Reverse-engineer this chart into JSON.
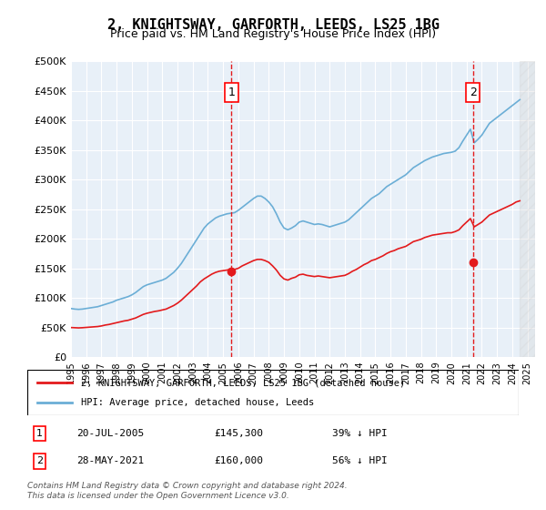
{
  "title": "2, KNIGHTSWAY, GARFORTH, LEEDS, LS25 1BG",
  "subtitle": "Price paid vs. HM Land Registry's House Price Index (HPI)",
  "ylabel_ticks": [
    "£0",
    "£50K",
    "£100K",
    "£150K",
    "£200K",
    "£250K",
    "£300K",
    "£350K",
    "£400K",
    "£450K",
    "£500K"
  ],
  "ylim": [
    0,
    500000
  ],
  "xlim_start": 1995.0,
  "xlim_end": 2025.5,
  "hpi_color": "#6baed6",
  "property_color": "#e31a1c",
  "background_color": "#e8f0f8",
  "transaction1_date": "20-JUL-2005",
  "transaction1_price": "£145,300",
  "transaction1_pct": "39% ↓ HPI",
  "transaction1_year": 2005.55,
  "transaction1_value": 145300,
  "transaction2_date": "28-MAY-2021",
  "transaction2_price": "£160,000",
  "transaction2_pct": "56% ↓ HPI",
  "transaction2_year": 2021.41,
  "transaction2_value": 160000,
  "legend_label_property": "2, KNIGHTSWAY, GARFORTH, LEEDS, LS25 1BG (detached house)",
  "legend_label_hpi": "HPI: Average price, detached house, Leeds",
  "footer": "Contains HM Land Registry data © Crown copyright and database right 2024.\nThis data is licensed under the Open Government Licence v3.0.",
  "hpi_data": {
    "years": [
      1995.0,
      1995.25,
      1995.5,
      1995.75,
      1996.0,
      1996.25,
      1996.5,
      1996.75,
      1997.0,
      1997.25,
      1997.5,
      1997.75,
      1998.0,
      1998.25,
      1998.5,
      1998.75,
      1999.0,
      1999.25,
      1999.5,
      1999.75,
      2000.0,
      2000.25,
      2000.5,
      2000.75,
      2001.0,
      2001.25,
      2001.5,
      2001.75,
      2002.0,
      2002.25,
      2002.5,
      2002.75,
      2003.0,
      2003.25,
      2003.5,
      2003.75,
      2004.0,
      2004.25,
      2004.5,
      2004.75,
      2005.0,
      2005.25,
      2005.5,
      2005.75,
      2006.0,
      2006.25,
      2006.5,
      2006.75,
      2007.0,
      2007.25,
      2007.5,
      2007.75,
      2008.0,
      2008.25,
      2008.5,
      2008.75,
      2009.0,
      2009.25,
      2009.5,
      2009.75,
      2010.0,
      2010.25,
      2010.5,
      2010.75,
      2011.0,
      2011.25,
      2011.5,
      2011.75,
      2012.0,
      2012.25,
      2012.5,
      2012.75,
      2013.0,
      2013.25,
      2013.5,
      2013.75,
      2014.0,
      2014.25,
      2014.5,
      2014.75,
      2015.0,
      2015.25,
      2015.5,
      2015.75,
      2016.0,
      2016.25,
      2016.5,
      2016.75,
      2017.0,
      2017.25,
      2017.5,
      2017.75,
      2018.0,
      2018.25,
      2018.5,
      2018.75,
      2019.0,
      2019.25,
      2019.5,
      2019.75,
      2020.0,
      2020.25,
      2020.5,
      2020.75,
      2021.0,
      2021.25,
      2021.5,
      2021.75,
      2022.0,
      2022.25,
      2022.5,
      2022.75,
      2023.0,
      2023.25,
      2023.5,
      2023.75,
      2024.0,
      2024.25,
      2024.5
    ],
    "values": [
      82000,
      81000,
      80500,
      81000,
      82000,
      83000,
      84000,
      85000,
      87000,
      89000,
      91000,
      93000,
      96000,
      98000,
      100000,
      102000,
      105000,
      109000,
      114000,
      119000,
      122000,
      124000,
      126000,
      128000,
      130000,
      133000,
      138000,
      143000,
      150000,
      158000,
      168000,
      178000,
      188000,
      198000,
      208000,
      218000,
      225000,
      230000,
      235000,
      238000,
      240000,
      242000,
      243000,
      244000,
      248000,
      253000,
      258000,
      263000,
      268000,
      272000,
      272000,
      268000,
      262000,
      254000,
      242000,
      228000,
      218000,
      215000,
      218000,
      222000,
      228000,
      230000,
      228000,
      226000,
      224000,
      225000,
      224000,
      222000,
      220000,
      222000,
      224000,
      226000,
      228000,
      232000,
      238000,
      244000,
      250000,
      256000,
      262000,
      268000,
      272000,
      276000,
      282000,
      288000,
      292000,
      296000,
      300000,
      304000,
      308000,
      314000,
      320000,
      324000,
      328000,
      332000,
      335000,
      338000,
      340000,
      342000,
      344000,
      345000,
      346000,
      348000,
      354000,
      365000,
      375000,
      385000,
      362000,
      368000,
      375000,
      385000,
      395000,
      400000,
      405000,
      410000,
      415000,
      420000,
      425000,
      430000,
      435000
    ]
  },
  "property_hpi_data": {
    "years": [
      1995.0,
      1995.25,
      1995.5,
      1995.75,
      1996.0,
      1996.25,
      1996.5,
      1996.75,
      1997.0,
      1997.25,
      1997.5,
      1997.75,
      1998.0,
      1998.25,
      1998.5,
      1998.75,
      1999.0,
      1999.25,
      1999.5,
      1999.75,
      2000.0,
      2000.25,
      2000.5,
      2000.75,
      2001.0,
      2001.25,
      2001.5,
      2001.75,
      2002.0,
      2002.25,
      2002.5,
      2002.75,
      2003.0,
      2003.25,
      2003.5,
      2003.75,
      2004.0,
      2004.25,
      2004.5,
      2004.75,
      2005.0,
      2005.25,
      2005.5,
      2005.75,
      2006.0,
      2006.25,
      2006.5,
      2006.75,
      2007.0,
      2007.25,
      2007.5,
      2007.75,
      2008.0,
      2008.25,
      2008.5,
      2008.75,
      2009.0,
      2009.25,
      2009.5,
      2009.75,
      2010.0,
      2010.25,
      2010.5,
      2010.75,
      2011.0,
      2011.25,
      2011.5,
      2011.75,
      2012.0,
      2012.25,
      2012.5,
      2012.75,
      2013.0,
      2013.25,
      2013.5,
      2013.75,
      2014.0,
      2014.25,
      2014.5,
      2014.75,
      2015.0,
      2015.25,
      2015.5,
      2015.75,
      2016.0,
      2016.25,
      2016.5,
      2016.75,
      2017.0,
      2017.25,
      2017.5,
      2017.75,
      2018.0,
      2018.25,
      2018.5,
      2018.75,
      2019.0,
      2019.25,
      2019.5,
      2019.75,
      2020.0,
      2020.25,
      2020.5,
      2020.75,
      2021.0,
      2021.25,
      2021.5,
      2021.75,
      2022.0,
      2022.25,
      2022.5,
      2022.75,
      2023.0,
      2023.25,
      2023.5,
      2023.75,
      2024.0,
      2024.25,
      2024.5
    ],
    "values": [
      49800,
      49500,
      49200,
      49500,
      50000,
      50500,
      51000,
      51500,
      52500,
      54000,
      55000,
      56500,
      58000,
      59500,
      61000,
      62000,
      64000,
      66000,
      69000,
      72000,
      74000,
      75500,
      77000,
      78000,
      79500,
      81000,
      84000,
      87000,
      91000,
      96000,
      102000,
      108000,
      114000,
      120000,
      127000,
      132000,
      136000,
      140000,
      143000,
      145000,
      146000,
      147000,
      148000,
      148000,
      150000,
      154000,
      157000,
      160000,
      163000,
      165000,
      165000,
      163000,
      160000,
      154000,
      147000,
      138000,
      132000,
      130000,
      133000,
      135000,
      139000,
      140000,
      138000,
      137000,
      136000,
      137000,
      136000,
      135000,
      134000,
      135000,
      136000,
      137000,
      138000,
      141000,
      145000,
      148000,
      152000,
      156000,
      159000,
      163000,
      165000,
      168000,
      171000,
      175000,
      178000,
      180000,
      183000,
      185000,
      187000,
      191000,
      195000,
      197000,
      199000,
      202000,
      204000,
      206000,
      207000,
      208000,
      209000,
      210000,
      210000,
      212000,
      215000,
      222000,
      228000,
      234000,
      220000,
      224000,
      228000,
      234000,
      240000,
      243000,
      246000,
      249000,
      252000,
      255000,
      258000,
      262000,
      264000
    ]
  }
}
